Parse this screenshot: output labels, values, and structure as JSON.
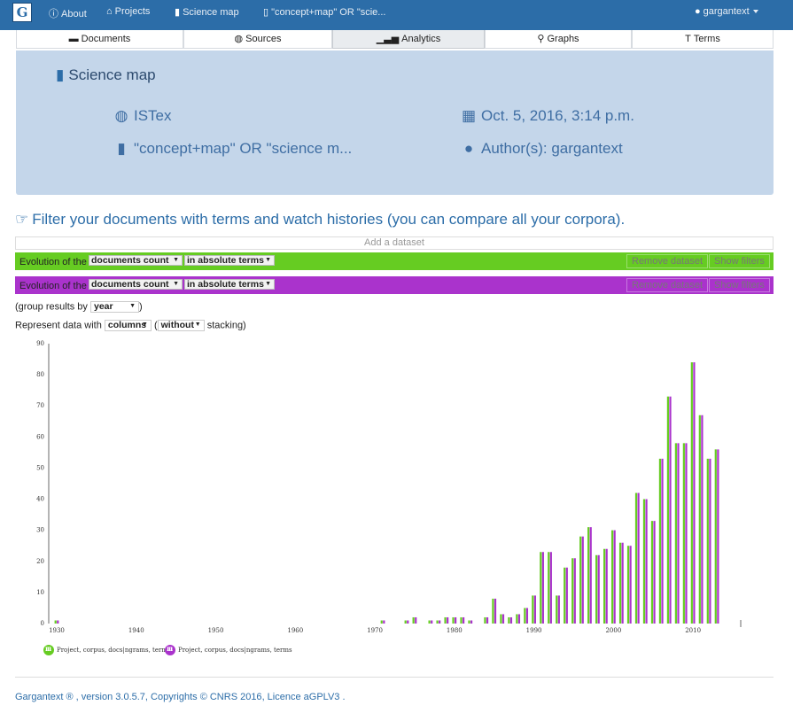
{
  "navbar": {
    "logo": "G",
    "about": "About",
    "projects": "Projects",
    "science_map": "Science map",
    "query": "\"concept+map\" OR \"scie...",
    "user": "gargantext"
  },
  "tabs": [
    {
      "label": "Documents",
      "icon": "folder-open-icon"
    },
    {
      "label": "Sources",
      "icon": "globe-icon"
    },
    {
      "label": "Analytics",
      "icon": "signal-icon"
    },
    {
      "label": "Graphs",
      "icon": "map-marker-icon"
    },
    {
      "label": "Terms",
      "icon": "text-height-icon"
    }
  ],
  "header": {
    "title": "Science map",
    "source": "ISTex",
    "query": "\"concept+map\" OR \"science m...",
    "date": "Oct. 5, 2016, 3:14 p.m.",
    "authors": "Author(s): gargantext"
  },
  "filter": {
    "title": "Filter your documents with terms and watch histories (you can compare all your corpora).",
    "add_dataset": "Add a dataset",
    "datasets": [
      {
        "prefix": "Evolution of the",
        "measure": "documents count",
        "mode": "in absolute terms",
        "remove": "Remove dataset",
        "show": "Show filters",
        "color": "#66cc22"
      },
      {
        "prefix": "Evolution of the",
        "measure": "documents count",
        "mode": "in absolute terms",
        "remove": "Remove dataset",
        "show": "Show filters",
        "color": "#aa33cc"
      }
    ],
    "group_prefix": "(group results by",
    "group_value": "year",
    "group_suffix": ")",
    "represent_prefix": "Represent data with",
    "represent_value": "columns",
    "stack_open": "(",
    "stack_value": "without",
    "stack_suffix": "stacking)"
  },
  "chart_data": {
    "type": "bar",
    "x_ticks": [
      "1930",
      "1940",
      "1950",
      "1960",
      "1970",
      "1980",
      "1990",
      "2000",
      "2010"
    ],
    "y_ticks": [
      "0",
      "10",
      "20",
      "30",
      "40",
      "50",
      "60",
      "70",
      "80",
      "90"
    ],
    "ylim": [
      0,
      90
    ],
    "xlim": [
      1929,
      2016
    ],
    "series": [
      {
        "name": "Project, corpus, docs|ngrams, terms",
        "color": "#66cc22"
      },
      {
        "name": "Project, corpus, docs|ngrams, terms",
        "color": "#aa33cc"
      }
    ],
    "x": [
      1930,
      1971,
      1974,
      1975,
      1977,
      1978,
      1979,
      1980,
      1981,
      1982,
      1984,
      1985,
      1986,
      1987,
      1988,
      1989,
      1990,
      1991,
      1992,
      1993,
      1994,
      1995,
      1996,
      1997,
      1998,
      1999,
      2000,
      2001,
      2002,
      2003,
      2004,
      2005,
      2006,
      2007,
      2008,
      2009,
      2010,
      2011,
      2012,
      2013
    ],
    "values": [
      1,
      1,
      1,
      2,
      1,
      1,
      2,
      2,
      2,
      1,
      2,
      8,
      3,
      2,
      3,
      5,
      9,
      23,
      23,
      9,
      18,
      21,
      28,
      31,
      22,
      24,
      30,
      26,
      25,
      42,
      40,
      33,
      53,
      73,
      58,
      58,
      84,
      67,
      53,
      56
    ]
  },
  "footer": {
    "brand": "Gargantext",
    "version": ", version 3.0.5.7,",
    "copyrights": "Copyrights",
    "cnrs": "CNRS 2016",
    "licence": ", Licence aGPLV3 ."
  }
}
